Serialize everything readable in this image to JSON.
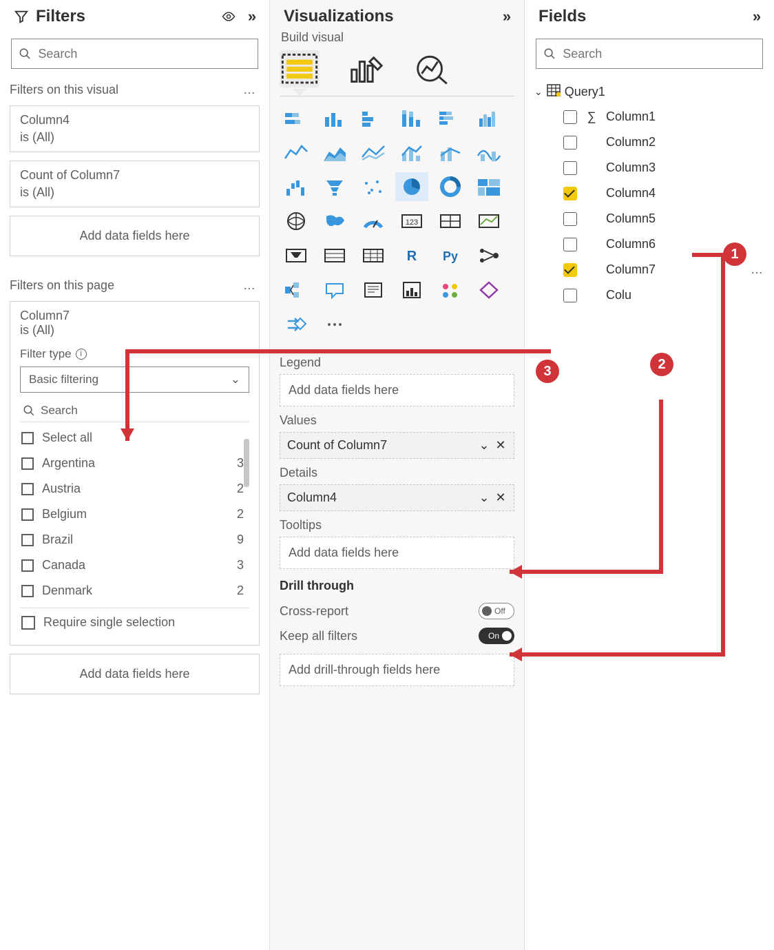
{
  "colors": {
    "annotation": "#d13438",
    "accent_blue": "#0078d4",
    "checkbox_yellow": "#f2c811",
    "panel_gray_bg": "#f8f7f6",
    "border": "#d2d0ce",
    "text_primary": "#323130",
    "text_secondary": "#605e5c"
  },
  "filters": {
    "title": "Filters",
    "search_placeholder": "Search",
    "visual_section": "Filters on this visual",
    "visual_cards": [
      {
        "field": "Column4",
        "condition": "is (All)"
      },
      {
        "field": "Count of Column7",
        "condition": "is (All)"
      }
    ],
    "add_fields": "Add data fields here",
    "page_section": "Filters on this page",
    "page_filter": {
      "field": "Column7",
      "condition": "is (All)",
      "filter_type_label": "Filter type",
      "filter_type_value": "Basic filtering",
      "inner_search": "Search",
      "options": [
        {
          "label": "Select all",
          "count": ""
        },
        {
          "label": "Argentina",
          "count": "3"
        },
        {
          "label": "Austria",
          "count": "2"
        },
        {
          "label": "Belgium",
          "count": "2"
        },
        {
          "label": "Brazil",
          "count": "9"
        },
        {
          "label": "Canada",
          "count": "3"
        },
        {
          "label": "Denmark",
          "count": "2"
        }
      ],
      "require_single": "Require single selection"
    }
  },
  "viz": {
    "title": "Visualizations",
    "build_label": "Build visual",
    "selected_viz_index": 14,
    "wells": {
      "legend_label": "Legend",
      "legend_drop": "Add data fields here",
      "values_label": "Values",
      "values_pill": "Count of Column7",
      "details_label": "Details",
      "details_pill": "Column4",
      "tooltips_label": "Tooltips",
      "tooltips_drop": "Add data fields here",
      "drill_title": "Drill through",
      "cross_report": "Cross-report",
      "cross_report_state": "Off",
      "keep_filters": "Keep all filters",
      "keep_filters_state": "On",
      "drill_drop": "Add drill-through fields here"
    }
  },
  "fields": {
    "title": "Fields",
    "search_placeholder": "Search",
    "table": "Query1",
    "columns": [
      {
        "name": "Column1",
        "checked": false,
        "sigma": true
      },
      {
        "name": "Column2",
        "checked": false,
        "sigma": false
      },
      {
        "name": "Column3",
        "checked": false,
        "sigma": false
      },
      {
        "name": "Column4",
        "checked": true,
        "sigma": false
      },
      {
        "name": "Column5",
        "checked": false,
        "sigma": false
      },
      {
        "name": "Column6",
        "checked": false,
        "sigma": false
      },
      {
        "name": "Column7",
        "checked": true,
        "sigma": false,
        "dots": true
      },
      {
        "name": "Colu",
        "checked": false,
        "sigma": false
      }
    ]
  },
  "annotations": {
    "badges": [
      "1",
      "2",
      "3"
    ]
  }
}
